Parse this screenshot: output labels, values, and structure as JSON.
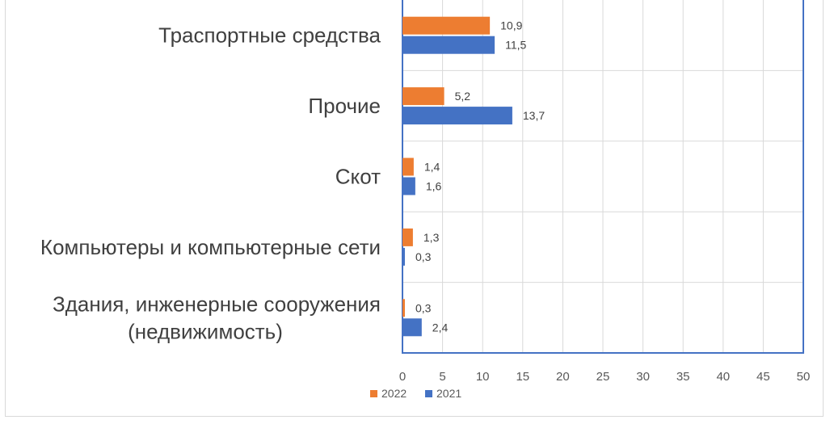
{
  "chart_data": {
    "type": "bar",
    "orientation": "horizontal",
    "categories": [
      "Траспортные средства",
      "Прочие",
      "Скот",
      "Компьютеры и компьютерные сети",
      "Здания, инженерные сооружения (недвижимость)"
    ],
    "category_lines": [
      [
        "Траспортные средства"
      ],
      [
        "Прочие"
      ],
      [
        "Скот"
      ],
      [
        "Компьютеры и компьютерные сети"
      ],
      [
        "Здания, инженерные сооружения",
        "(недвижимость)"
      ]
    ],
    "series": [
      {
        "name": "2022",
        "color": "#ED7D31",
        "values": [
          10.9,
          5.2,
          1.4,
          1.3,
          0.3
        ],
        "labels": [
          "10,9",
          "5,2",
          "1,4",
          "1,3",
          "0,3"
        ]
      },
      {
        "name": "2021",
        "color": "#4472C4",
        "values": [
          11.5,
          13.7,
          1.6,
          0.3,
          2.4
        ],
        "labels": [
          "11,5",
          "13,7",
          "1,6",
          "0,3",
          "2,4"
        ]
      }
    ],
    "x_ticks": [
      "0",
      "5",
      "10",
      "15",
      "20",
      "25",
      "30",
      "35",
      "40",
      "45",
      "50"
    ],
    "xlim": [
      0,
      50
    ],
    "grid": "vertical",
    "legend": "bottom",
    "title": "",
    "xlabel": "",
    "ylabel": ""
  }
}
